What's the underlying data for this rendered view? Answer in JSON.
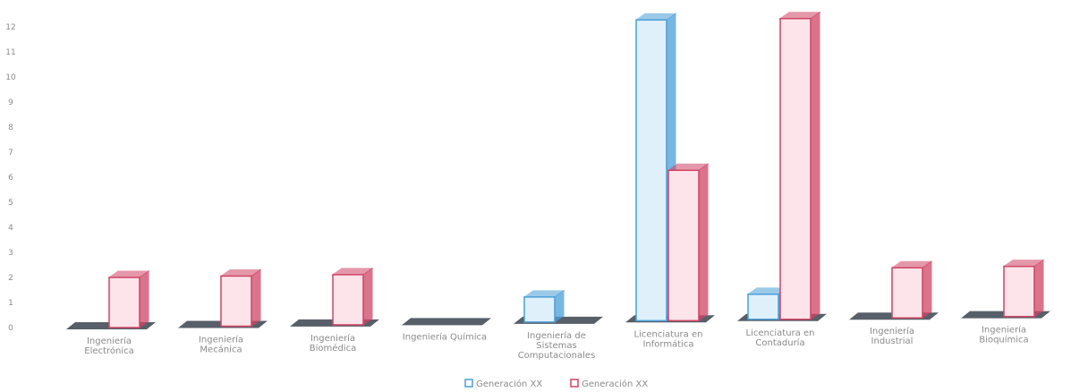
{
  "chart_data": {
    "type": "bar",
    "style": "3d-clustered-column",
    "ylim": [
      0,
      12
    ],
    "yticks": [
      "0",
      "1",
      "2",
      "3",
      "4",
      "5",
      "6",
      "7",
      "8",
      "9",
      "10",
      "11",
      "12"
    ],
    "categories": [
      [
        "Ingeniería",
        "Electrónica"
      ],
      [
        "Ingeniería",
        "Mecánica"
      ],
      [
        "Ingeniería",
        "Biomédica"
      ],
      [
        "Ingeniería Química"
      ],
      [
        "Ingeniería de",
        "Sistemas",
        "Computacionales"
      ],
      [
        "Licenciatura en",
        "Informática"
      ],
      [
        "Licenciatura en",
        "Contaduría"
      ],
      [
        "Ingeniería",
        "Industrial"
      ],
      [
        "Ingeniería",
        "Bioquímica"
      ]
    ],
    "series": [
      {
        "name": "Generación XX",
        "color": "#4a9fd8",
        "fill": "#dff0fb",
        "values": [
          0,
          0,
          0,
          0,
          1,
          12,
          1,
          0,
          0
        ]
      },
      {
        "name": "Generación XX",
        "color": "#cf4565",
        "fill": "#fce4ea",
        "values": [
          2,
          2,
          2,
          0,
          0,
          6,
          12,
          2,
          2
        ]
      }
    ],
    "legend_position": "bottom",
    "grid": false
  }
}
